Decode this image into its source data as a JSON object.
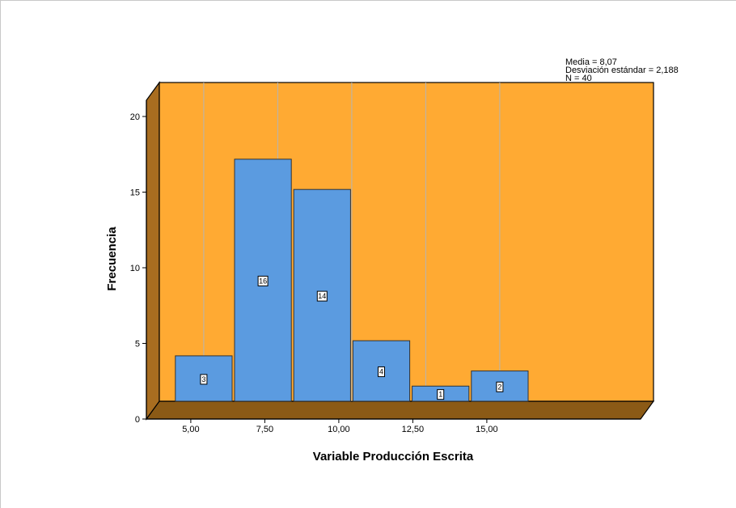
{
  "chart_data": {
    "type": "bar",
    "subtype": "histogram",
    "x_ticks": [
      "5,00",
      "7,50",
      "10,00",
      "12,50",
      "15,00"
    ],
    "bins": [
      {
        "from": 4.0,
        "to": 6.0,
        "value": 3,
        "label": "3"
      },
      {
        "from": 6.0,
        "to": 8.0,
        "value": 16,
        "label": "16"
      },
      {
        "from": 8.0,
        "to": 10.0,
        "value": 14,
        "label": "14"
      },
      {
        "from": 10.0,
        "to": 12.0,
        "value": 4,
        "label": "4"
      },
      {
        "from": 12.0,
        "to": 14.0,
        "value": 1,
        "label": "1"
      },
      {
        "from": 14.0,
        "to": 16.0,
        "value": 2,
        "label": "2"
      }
    ],
    "y_ticks": [
      "0",
      "5",
      "10",
      "15",
      "20"
    ],
    "ylim": [
      0,
      20
    ],
    "xlabel": "Variable Producción Escrita",
    "ylabel": "Frecuencia",
    "stats": [
      "Media = 8,07",
      "Desviación estándar = 2,188",
      "N = 40"
    ],
    "grid": "vertical",
    "colors": {
      "bar": "#5b9be0",
      "plot_background": "#ffaa33",
      "floor": "#8b5a16",
      "wall": "#a86d20"
    }
  }
}
